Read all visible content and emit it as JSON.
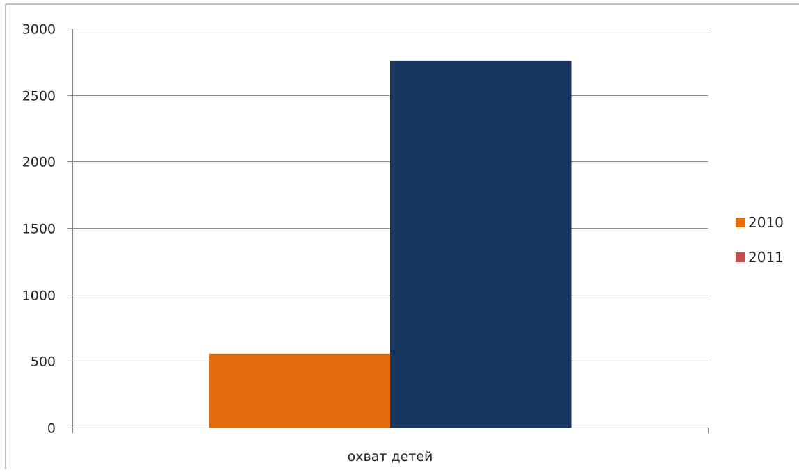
{
  "chart_data": {
    "type": "bar",
    "categories": [
      "охват детей"
    ],
    "series": [
      {
        "name": "2010",
        "values": [
          555
        ],
        "color": "#e46c0a"
      },
      {
        "name": "2011",
        "values": [
          2755
        ],
        "color": "#17375e",
        "legend_color": "#c0504d"
      }
    ],
    "title": "",
    "xlabel": "",
    "ylabel": "",
    "ylim": [
      0,
      3000
    ],
    "yticks": [
      0,
      500,
      1000,
      1500,
      2000,
      2500,
      3000
    ],
    "grid": true,
    "legend": "right"
  }
}
